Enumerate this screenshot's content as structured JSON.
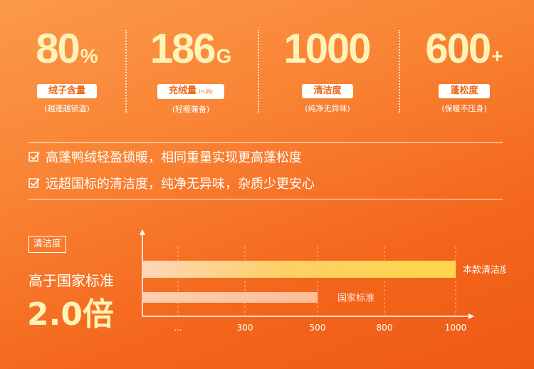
{
  "stats": [
    {
      "value": "80",
      "unit": "%",
      "label": "绒子含量",
      "label_note": "",
      "note": "(越蓬越锁温)"
    },
    {
      "value": "186",
      "unit": "G",
      "label": "充绒量",
      "label_note": "(*L码)",
      "note": "(轻暖兼备)"
    },
    {
      "value": "1000",
      "unit": "",
      "label": "清洁度",
      "label_note": "",
      "note": "(纯净无异味)"
    },
    {
      "value": "600",
      "unit": "+",
      "label": "蓬松度",
      "label_note": "",
      "note": "(保暖不压身)"
    }
  ],
  "claims": [
    {
      "icon": "checkbox-icon",
      "text": "高蓬鸭绒轻盈锁暖，相同重量实现更高蓬松度"
    },
    {
      "icon": "checkbox-icon",
      "text": "远超国标的清洁度，纯净无异味，杂质少更安心"
    }
  ],
  "comparison": {
    "tag": "清洁度",
    "headline": "高于国家标准",
    "multiplier": "2.0倍"
  },
  "chart_data": {
    "type": "bar",
    "orientation": "horizontal",
    "x_ticks": [
      "...",
      "300",
      "500",
      "800",
      "1000"
    ],
    "series": [
      {
        "name": "本款清洁度",
        "value": 1000
      },
      {
        "name": "国家标准",
        "value": 500
      }
    ],
    "grid": true,
    "colors": {
      "primary": "#ffd54a",
      "secondary": "#ffc1a0"
    }
  }
}
